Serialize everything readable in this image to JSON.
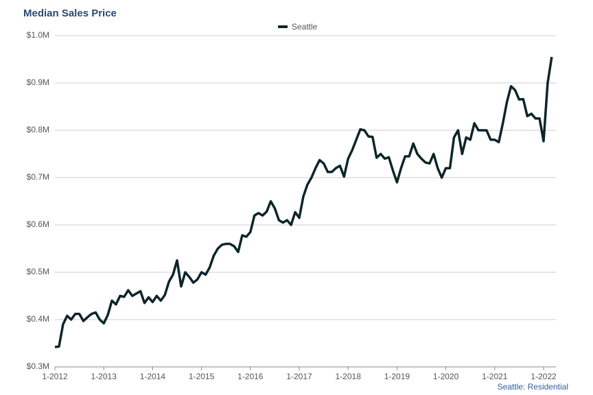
{
  "chart_data": {
    "type": "line",
    "title": "Median Sales Price",
    "footnote": "Seattle: Residential",
    "categories": [
      "1-2012",
      null,
      null,
      null,
      null,
      null,
      null,
      null,
      null,
      null,
      null,
      null,
      "1-2013",
      null,
      null,
      null,
      null,
      null,
      null,
      null,
      null,
      null,
      null,
      null,
      "1-2014",
      null,
      null,
      null,
      null,
      null,
      null,
      null,
      null,
      null,
      null,
      null,
      "1-2015",
      null,
      null,
      null,
      null,
      null,
      null,
      null,
      null,
      null,
      null,
      null,
      "1-2016",
      null,
      null,
      null,
      null,
      null,
      null,
      null,
      null,
      null,
      null,
      null,
      "1-2017",
      null,
      null,
      null,
      null,
      null,
      null,
      null,
      null,
      null,
      null,
      null,
      "1-2018",
      null,
      null,
      null,
      null,
      null,
      null,
      null,
      null,
      null,
      null,
      null,
      "1-2019",
      null,
      null,
      null,
      null,
      null,
      null,
      null,
      null,
      null,
      null,
      null,
      "1-2020",
      null,
      null,
      null,
      null,
      null,
      null,
      null,
      null,
      null,
      null,
      null,
      "1-2021",
      null,
      null,
      null,
      null,
      null,
      null,
      null,
      null,
      null,
      null,
      null,
      "1-2022",
      null,
      null
    ],
    "series": [
      {
        "name": "Seattle",
        "color": "#0d2529",
        "values": [
          342000,
          343000,
          390000,
          408000,
          400000,
          412000,
          412000,
          397000,
          405000,
          412000,
          415000,
          400000,
          392000,
          410000,
          440000,
          432000,
          450000,
          448000,
          462000,
          450000,
          455000,
          460000,
          435000,
          447000,
          437000,
          450000,
          440000,
          452000,
          480000,
          495000,
          525000,
          470000,
          500000,
          490000,
          478000,
          485000,
          500000,
          495000,
          510000,
          535000,
          550000,
          558000,
          560000,
          560000,
          555000,
          543000,
          578000,
          575000,
          585000,
          620000,
          625000,
          620000,
          628000,
          650000,
          635000,
          610000,
          605000,
          610000,
          600000,
          627000,
          615000,
          660000,
          685000,
          700000,
          720000,
          737000,
          730000,
          712000,
          712000,
          720000,
          725000,
          702000,
          740000,
          758000,
          780000,
          802000,
          800000,
          787000,
          786000,
          742000,
          750000,
          740000,
          743000,
          715000,
          690000,
          720000,
          745000,
          745000,
          772000,
          750000,
          740000,
          732000,
          730000,
          750000,
          720000,
          700000,
          720000,
          720000,
          785000,
          800000,
          750000,
          785000,
          780000,
          815000,
          800000,
          800000,
          800000,
          780000,
          780000,
          775000,
          815000,
          860000,
          893000,
          885000,
          865000,
          866000,
          830000,
          835000,
          825000,
          825000,
          777000,
          900000,
          955000
        ]
      }
    ],
    "ylim": [
      300000,
      1000000
    ],
    "yticks": [
      {
        "value": 300000,
        "label": "$0.3M"
      },
      {
        "value": 400000,
        "label": "$0.4M"
      },
      {
        "value": 500000,
        "label": "$0.5M"
      },
      {
        "value": 600000,
        "label": "$0.6M"
      },
      {
        "value": 700000,
        "label": "$0.7M"
      },
      {
        "value": 800000,
        "label": "$0.8M"
      },
      {
        "value": 900000,
        "label": "$0.9M"
      },
      {
        "value": 1000000,
        "label": "$1.0M"
      }
    ],
    "grid": true
  }
}
